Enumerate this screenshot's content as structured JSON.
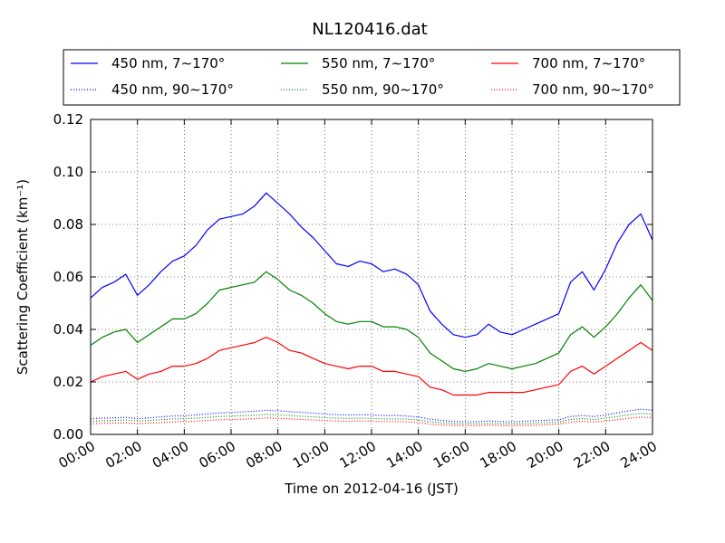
{
  "chart_data": {
    "type": "line",
    "title": "NL120416.dat",
    "xlabel": "Time on 2012-04-16 (JST)",
    "ylabel": "Scattering Coefficient (km⁻¹)",
    "xlim_hours": [
      0,
      24
    ],
    "ylim": [
      0,
      0.12
    ],
    "grid": true,
    "legend_placement": "top",
    "x_tick_labels": [
      "00:00",
      "02:00",
      "04:00",
      "06:00",
      "08:00",
      "10:00",
      "12:00",
      "14:00",
      "16:00",
      "18:00",
      "20:00",
      "22:00",
      "24:00"
    ],
    "y_tick_labels": [
      "0.00",
      "0.02",
      "0.04",
      "0.06",
      "0.08",
      "0.10",
      "0.12"
    ],
    "x_hours": [
      0,
      0.5,
      1,
      1.5,
      2,
      2.5,
      3,
      3.5,
      4,
      4.5,
      5,
      5.5,
      6,
      6.5,
      7,
      7.5,
      8,
      8.5,
      9,
      9.5,
      10,
      10.5,
      11,
      11.5,
      12,
      12.5,
      13,
      13.5,
      14,
      14.5,
      15,
      15.5,
      16,
      16.5,
      17,
      17.5,
      18,
      18.5,
      19,
      19.5,
      20,
      20.5,
      21,
      21.5,
      22,
      22.5,
      23,
      23.5,
      24
    ],
    "series": [
      {
        "name": "450 nm, 7∼170°",
        "color": "#0000ff",
        "style": "solid",
        "values": [
          0.052,
          0.056,
          0.058,
          0.061,
          0.053,
          0.057,
          0.062,
          0.066,
          0.068,
          0.072,
          0.078,
          0.082,
          0.083,
          0.084,
          0.087,
          0.092,
          0.088,
          0.084,
          0.079,
          0.075,
          0.07,
          0.065,
          0.064,
          0.066,
          0.065,
          0.062,
          0.063,
          0.061,
          0.057,
          0.047,
          0.042,
          0.038,
          0.037,
          0.038,
          0.042,
          0.039,
          0.038,
          0.04,
          0.042,
          0.044,
          0.046,
          0.058,
          0.062,
          0.055,
          0.063,
          0.073,
          0.08,
          0.084,
          0.074
        ]
      },
      {
        "name": "550 nm, 7∼170°",
        "color": "#008000",
        "style": "solid",
        "values": [
          0.034,
          0.037,
          0.039,
          0.04,
          0.035,
          0.038,
          0.041,
          0.044,
          0.044,
          0.046,
          0.05,
          0.055,
          0.056,
          0.057,
          0.058,
          0.062,
          0.059,
          0.055,
          0.053,
          0.05,
          0.046,
          0.043,
          0.042,
          0.043,
          0.043,
          0.041,
          0.041,
          0.04,
          0.037,
          0.031,
          0.028,
          0.025,
          0.024,
          0.025,
          0.027,
          0.026,
          0.025,
          0.026,
          0.027,
          0.029,
          0.031,
          0.038,
          0.041,
          0.037,
          0.041,
          0.046,
          0.052,
          0.057,
          0.051
        ]
      },
      {
        "name": "700 nm, 7∼170°",
        "color": "#ff0000",
        "style": "solid",
        "values": [
          0.02,
          0.022,
          0.023,
          0.024,
          0.021,
          0.023,
          0.024,
          0.026,
          0.026,
          0.027,
          0.029,
          0.032,
          0.033,
          0.034,
          0.035,
          0.037,
          0.035,
          0.032,
          0.031,
          0.029,
          0.027,
          0.026,
          0.025,
          0.026,
          0.026,
          0.024,
          0.024,
          0.023,
          0.022,
          0.018,
          0.017,
          0.015,
          0.015,
          0.015,
          0.016,
          0.016,
          0.016,
          0.016,
          0.017,
          0.018,
          0.019,
          0.024,
          0.026,
          0.023,
          0.026,
          0.029,
          0.032,
          0.035,
          0.032
        ]
      },
      {
        "name": "450 nm, 90∼170°",
        "color": "#0000ff",
        "style": "dotted",
        "values": [
          0.006,
          0.0062,
          0.0063,
          0.0065,
          0.006,
          0.0063,
          0.0067,
          0.007,
          0.0071,
          0.0074,
          0.0078,
          0.0082,
          0.0084,
          0.0086,
          0.0088,
          0.0092,
          0.009,
          0.0087,
          0.0084,
          0.0081,
          0.0078,
          0.0075,
          0.0074,
          0.0075,
          0.0074,
          0.0072,
          0.0072,
          0.007,
          0.0066,
          0.0058,
          0.0053,
          0.0049,
          0.0048,
          0.0048,
          0.0051,
          0.0049,
          0.0048,
          0.005,
          0.0052,
          0.0054,
          0.0056,
          0.0068,
          0.0072,
          0.0068,
          0.0074,
          0.0082,
          0.009,
          0.0096,
          0.0092
        ]
      },
      {
        "name": "550 nm, 90∼170°",
        "color": "#008000",
        "style": "dotted",
        "values": [
          0.005,
          0.0052,
          0.0053,
          0.0055,
          0.0051,
          0.0053,
          0.0056,
          0.0059,
          0.006,
          0.0062,
          0.0065,
          0.0068,
          0.007,
          0.0071,
          0.0073,
          0.0076,
          0.0074,
          0.0072,
          0.0069,
          0.0067,
          0.0064,
          0.0062,
          0.0061,
          0.0062,
          0.0061,
          0.0059,
          0.0059,
          0.0058,
          0.0055,
          0.0048,
          0.0044,
          0.0041,
          0.004,
          0.004,
          0.0042,
          0.0041,
          0.004,
          0.0041,
          0.0043,
          0.0045,
          0.0047,
          0.0057,
          0.006,
          0.0057,
          0.0062,
          0.0068,
          0.0075,
          0.008,
          0.0077
        ]
      },
      {
        "name": "700 nm, 90∼170°",
        "color": "#ff0000",
        "style": "dotted",
        "values": [
          0.004,
          0.0042,
          0.0043,
          0.0044,
          0.0041,
          0.0043,
          0.0045,
          0.0048,
          0.0049,
          0.005,
          0.0053,
          0.0056,
          0.0057,
          0.0058,
          0.006,
          0.0063,
          0.0061,
          0.0059,
          0.0057,
          0.0055,
          0.0053,
          0.0051,
          0.005,
          0.0051,
          0.005,
          0.0049,
          0.0049,
          0.0048,
          0.0045,
          0.0039,
          0.0036,
          0.0034,
          0.0033,
          0.0033,
          0.0035,
          0.0034,
          0.0033,
          0.0034,
          0.0035,
          0.0037,
          0.0039,
          0.0047,
          0.005,
          0.0047,
          0.0051,
          0.0056,
          0.0062,
          0.0066,
          0.0064
        ]
      }
    ]
  }
}
